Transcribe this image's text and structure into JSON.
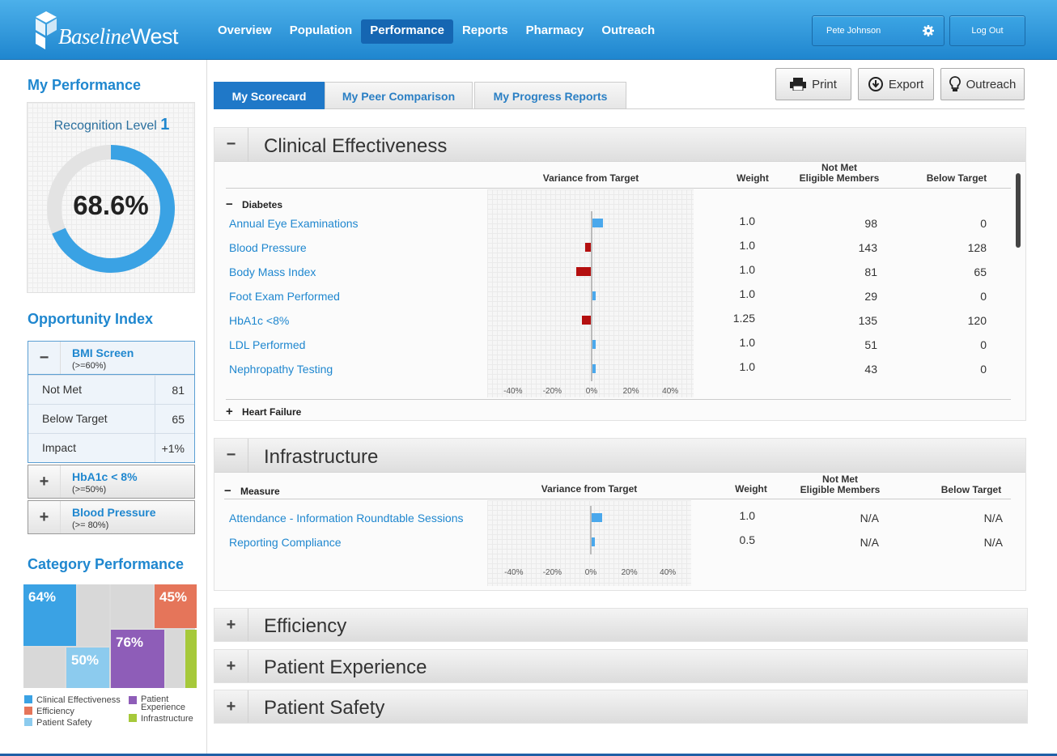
{
  "header": {
    "logo_text_a": "Baseline",
    "logo_text_b": "West",
    "nav": [
      "Overview",
      "Population",
      "Performance",
      "Reports",
      "Pharmacy",
      "Outreach"
    ],
    "active_nav": "Performance",
    "user_name": "Pete Johnson",
    "logout_label": "Log Out"
  },
  "sidebar": {
    "my_performance_title": "My Performance",
    "recognition_label": "Recognition Level",
    "recognition_level": "1",
    "performance_value": "68.6%",
    "performance_fraction": 0.686,
    "opportunity_title": "Opportunity Index",
    "opportunities": [
      {
        "name": "BMI Screen",
        "sub": "(>=60%)",
        "expanded": true,
        "rows": [
          {
            "k": "Not Met",
            "v": "81"
          },
          {
            "k": "Below Target",
            "v": "65"
          },
          {
            "k": "Impact",
            "v": "+1%"
          }
        ]
      },
      {
        "name": "HbA1c < 8%",
        "sub": "(>=50%)",
        "expanded": false
      },
      {
        "name": "Blood Pressure",
        "sub": "(>= 80%)",
        "expanded": false
      }
    ],
    "category_title": "Category Performance",
    "treemap": [
      {
        "label": "64%",
        "color": "#3aa2e4"
      },
      {
        "label": "50%",
        "color": "#8ccbee"
      },
      {
        "label": "45%",
        "color": "#e5755a"
      },
      {
        "label": "76%",
        "color": "#8e5db8"
      }
    ],
    "treemap_extra_color": "#a6c93a",
    "legend": [
      {
        "label": "Clinical Effectiveness",
        "color": "#3aa2e4"
      },
      {
        "label": "Efficiency",
        "color": "#e5755a"
      },
      {
        "label": "Patient Safety",
        "color": "#8ccbee"
      },
      {
        "label": "Patient Experience",
        "color": "#8e5db8"
      },
      {
        "label": "Infrastructure",
        "color": "#a6c93a"
      }
    ]
  },
  "tabs": [
    "My Scorecard",
    "My Peer Comparison",
    "My Progress Reports"
  ],
  "buttons": {
    "print": "Print",
    "export": "Export",
    "outreach": "Outreach"
  },
  "columns": {
    "variance": "Variance from Target",
    "weight": "Weight",
    "not_met_a": "Not Met",
    "not_met_b": "Eligible Members",
    "below": "Below Target"
  },
  "clinical": {
    "title": "Clinical Effectiveness",
    "group": "Diabetes",
    "collapsed_group": "Heart Failure",
    "rows": [
      {
        "name": "Annual Eye Examinations",
        "variance": 3,
        "weight": "1.0",
        "not_met": "98",
        "below": "0"
      },
      {
        "name": "Blood Pressure",
        "variance": -1.5,
        "weight": "1.0",
        "not_met": "143",
        "below": "128"
      },
      {
        "name": "Body Mass Index",
        "variance": -4,
        "weight": "1.0",
        "not_met": "81",
        "below": "65"
      },
      {
        "name": "Foot Exam Performed",
        "variance": 1,
        "weight": "1.0",
        "not_met": "29",
        "below": "0"
      },
      {
        "name": "HbA1c <8%",
        "variance": -2.5,
        "weight": "1.25",
        "not_met": "135",
        "below": "120"
      },
      {
        "name": "LDL Performed",
        "variance": 1,
        "weight": "1.0",
        "not_met": "51",
        "below": "0"
      },
      {
        "name": "Nephropathy Testing",
        "variance": 1,
        "weight": "1.0",
        "not_met": "43",
        "below": "0"
      }
    ]
  },
  "infrastructure": {
    "title": "Infrastructure",
    "group": "Measure",
    "rows": [
      {
        "name": "Attendance - Information Roundtable Sessions",
        "variance": 3,
        "weight": "1.0",
        "not_met": "N/A",
        "below": "N/A"
      },
      {
        "name": "Reporting Compliance",
        "variance": 1,
        "weight": "0.5",
        "not_met": "N/A",
        "below": "N/A"
      }
    ]
  },
  "axis_ticks": [
    "-40%",
    "-20%",
    "0%",
    "20%",
    "40%"
  ],
  "collapsed_sections": [
    "Efficiency",
    "Patient Experience",
    "Patient Safety"
  ],
  "colors": {
    "positive": "#4aa8ec",
    "negative": "#b40f0f",
    "accent": "#1f87cf"
  }
}
